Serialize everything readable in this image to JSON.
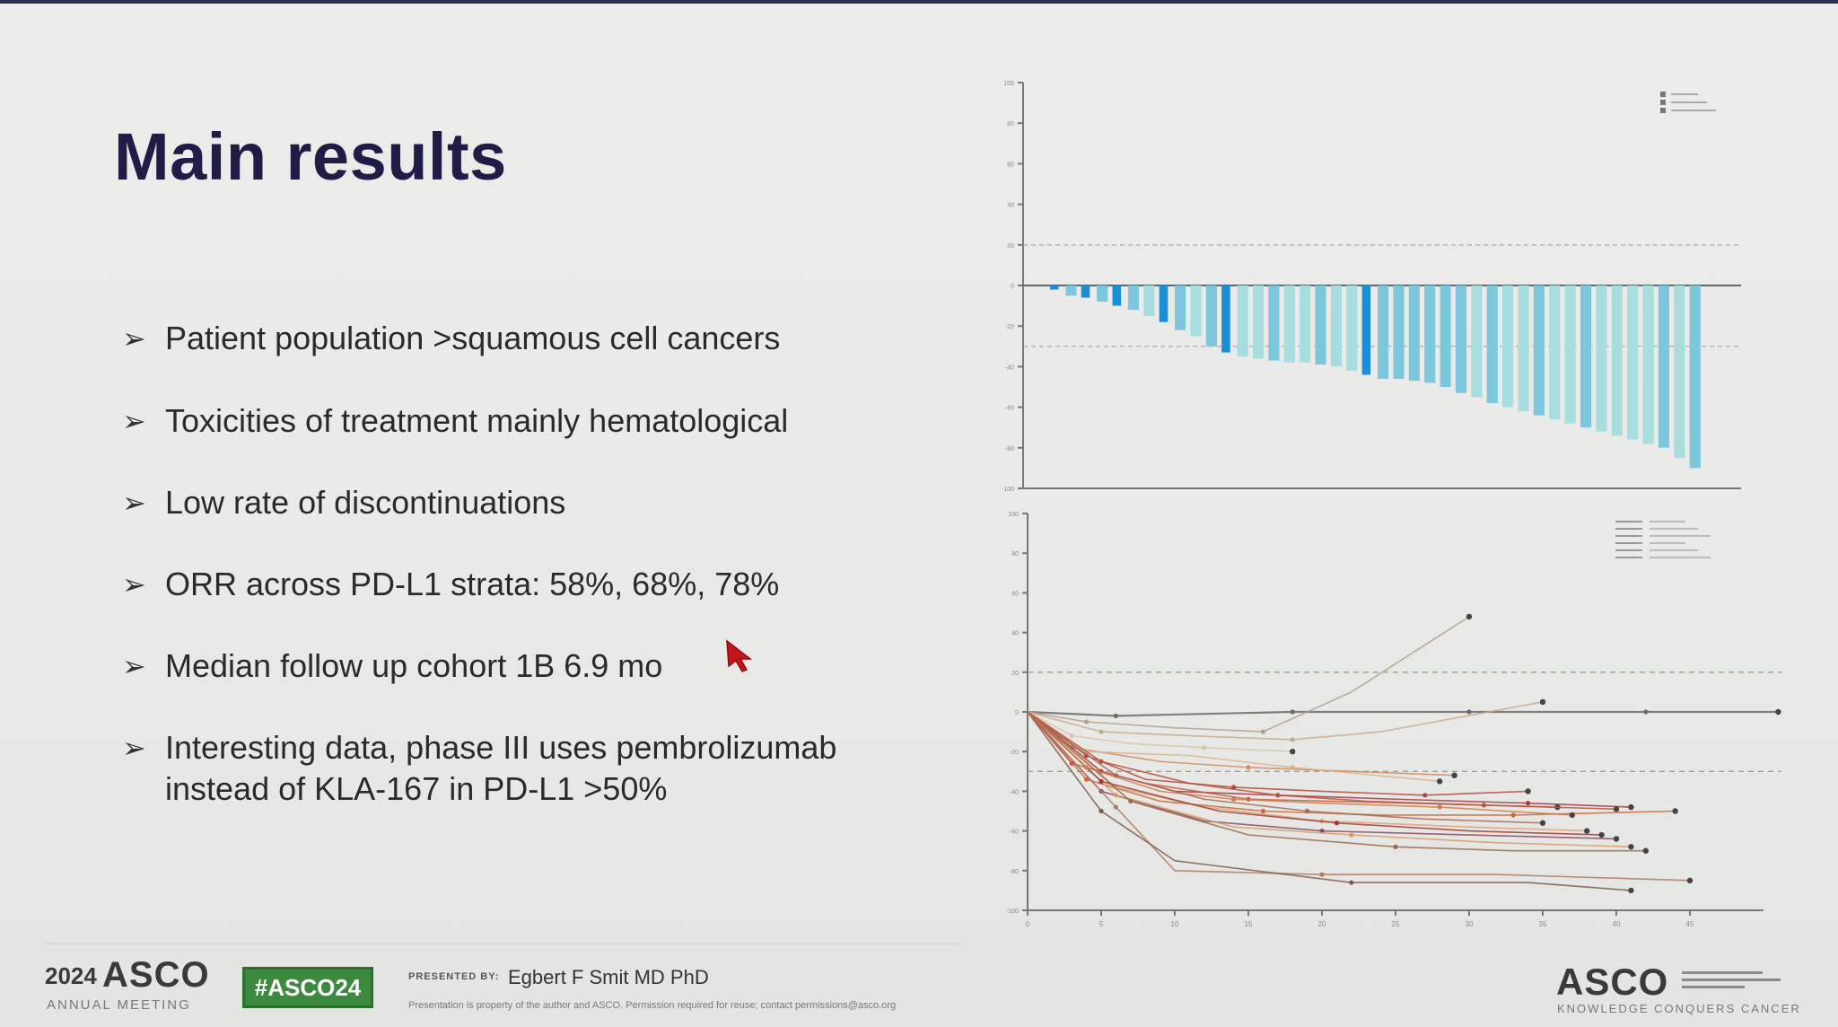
{
  "slide": {
    "title": "Main results",
    "bullets": [
      {
        "lines": [
          "Patient population >squamous cell cancers"
        ]
      },
      {
        "lines": [
          "Toxicities of treatment mainly hematological"
        ]
      },
      {
        "lines": [
          "Low rate of discontinuations"
        ]
      },
      {
        "lines": [
          "ORR across PD-L1 strata: 58%, 68%, 78%"
        ]
      },
      {
        "lines": [
          "Median follow up cohort 1B 6.9 mo"
        ]
      },
      {
        "lines": [
          "Interesting data, phase III uses pembrolizumab",
          "instead of KLA-167 in PD-L1 >50%"
        ]
      }
    ]
  },
  "footer": {
    "year": "2024",
    "asco": "ASCO",
    "annual_meeting": "ANNUAL MEETING",
    "hashtag": "#ASCO24",
    "presented_by": "PRESENTED BY:",
    "presenter": "Egbert F Smit MD PhD",
    "disclaimer": "Presentation is property of the author and ASCO. Permission required for reuse; contact permissions@asco.org",
    "asco_right": "ASCO",
    "asco_right_sub": "KNOWLEDGE CONQUERS CANCER"
  },
  "colors": {
    "title": "#1f1c45",
    "bar_dark": "#1b8fd6",
    "bar_light": "#a8dde0",
    "line_warm": "#c8683a",
    "hashtag_bg": "#3b8a3f"
  },
  "chart_data": [
    {
      "type": "bar",
      "description_key": "waterfall",
      "title": "",
      "ylim": [
        -100,
        100
      ],
      "y_ticks": [
        100,
        80,
        60,
        40,
        20,
        0,
        -20,
        -40,
        -60,
        -80,
        -100
      ],
      "reference_lines": [
        20,
        -30
      ],
      "values": [
        -2,
        -5,
        -6,
        -8,
        -10,
        -12,
        -15,
        -18,
        -22,
        -25,
        -30,
        -33,
        -35,
        -36,
        -37,
        -38,
        -38,
        -39,
        -40,
        -42,
        -44,
        -46,
        -46,
        -47,
        -48,
        -50,
        -53,
        -55,
        -58,
        -60,
        -62,
        -64,
        -66,
        -68,
        -70,
        -72,
        -74,
        -76,
        -78,
        -80,
        -85,
        -90
      ],
      "series_code": [
        0,
        1,
        0,
        1,
        0,
        1,
        2,
        0,
        1,
        2,
        1,
        0,
        2,
        2,
        1,
        2,
        2,
        1,
        2,
        2,
        0,
        1,
        1,
        1,
        1,
        1,
        1,
        2,
        1,
        2,
        2,
        1,
        2,
        2,
        1,
        2,
        2,
        2,
        2,
        1,
        2,
        1
      ]
    },
    {
      "type": "line",
      "description_key": "spider",
      "title": "",
      "ylim": [
        -100,
        100
      ],
      "y_ticks": [
        100,
        80,
        60,
        40,
        20,
        0,
        -20,
        -40,
        -60,
        -80,
        -100
      ],
      "x_ticks": [
        0,
        5,
        10,
        15,
        20,
        25,
        30,
        35,
        40,
        45
      ],
      "xlim": [
        0,
        50
      ],
      "reference_lines": [
        20,
        -30
      ],
      "series": [
        {
          "x": [
            0,
            6,
            12,
            18,
            24,
            30,
            36,
            42,
            51
          ],
          "y": [
            0,
            -2,
            -1,
            0,
            0,
            0,
            0,
            0,
            0
          ]
        },
        {
          "x": [
            0,
            4,
            10,
            16,
            22,
            30
          ],
          "y": [
            0,
            -5,
            -8,
            -10,
            10,
            48
          ]
        },
        {
          "x": [
            0,
            5,
            11,
            18,
            24,
            35
          ],
          "y": [
            0,
            -10,
            -12,
            -14,
            -10,
            5
          ]
        },
        {
          "x": [
            0,
            3,
            9,
            15,
            22,
            29
          ],
          "y": [
            0,
            -18,
            -25,
            -28,
            -30,
            -32
          ]
        },
        {
          "x": [
            0,
            4,
            8,
            14,
            20,
            27,
            34
          ],
          "y": [
            0,
            -22,
            -34,
            -38,
            -40,
            -42,
            -40
          ]
        },
        {
          "x": [
            0,
            5,
            10,
            17,
            25,
            34,
            41
          ],
          "y": [
            0,
            -30,
            -40,
            -42,
            -44,
            -46,
            -48
          ]
        },
        {
          "x": [
            0,
            4,
            9,
            16,
            24,
            33,
            44
          ],
          "y": [
            0,
            -34,
            -45,
            -50,
            -52,
            -52,
            -50
          ]
        },
        {
          "x": [
            0,
            6,
            12,
            20,
            30,
            38
          ],
          "y": [
            0,
            -38,
            -48,
            -55,
            -58,
            -60
          ]
        },
        {
          "x": [
            0,
            5,
            12,
            20,
            30,
            40
          ],
          "y": [
            0,
            -40,
            -55,
            -60,
            -62,
            -64
          ]
        },
        {
          "x": [
            0,
            6,
            14,
            22,
            32,
            41
          ],
          "y": [
            0,
            -42,
            -58,
            -62,
            -66,
            -68
          ]
        },
        {
          "x": [
            0,
            7,
            15,
            25,
            33,
            42
          ],
          "y": [
            0,
            -45,
            -62,
            -68,
            -70,
            -70
          ]
        },
        {
          "x": [
            0,
            6,
            10,
            20,
            32,
            45
          ],
          "y": [
            0,
            -48,
            -80,
            -82,
            -82,
            -85
          ]
        },
        {
          "x": [
            0,
            5,
            10,
            22,
            34,
            41
          ],
          "y": [
            0,
            -50,
            -75,
            -86,
            -86,
            -90
          ]
        },
        {
          "x": [
            0,
            4,
            11,
            18,
            28
          ],
          "y": [
            0,
            -20,
            -22,
            -28,
            -35
          ]
        },
        {
          "x": [
            0,
            3,
            8,
            15,
            26,
            36
          ],
          "y": [
            0,
            -26,
            -36,
            -44,
            -46,
            -48
          ]
        },
        {
          "x": [
            0,
            5,
            13,
            21,
            30,
            39
          ],
          "y": [
            0,
            -35,
            -50,
            -56,
            -60,
            -62
          ]
        },
        {
          "x": [
            0,
            4,
            9,
            14,
            20,
            28,
            37
          ],
          "y": [
            0,
            -28,
            -40,
            -44,
            -46,
            -48,
            -52
          ]
        },
        {
          "x": [
            0,
            6,
            12,
            19,
            27,
            35
          ],
          "y": [
            0,
            -32,
            -44,
            -50,
            -54,
            -56
          ]
        },
        {
          "x": [
            0,
            3,
            7,
            12,
            18
          ],
          "y": [
            0,
            -12,
            -16,
            -18,
            -20
          ]
        },
        {
          "x": [
            0,
            5,
            11,
            17,
            23,
            31,
            40
          ],
          "y": [
            0,
            -25,
            -36,
            -42,
            -45,
            -47,
            -49
          ]
        }
      ]
    }
  ]
}
